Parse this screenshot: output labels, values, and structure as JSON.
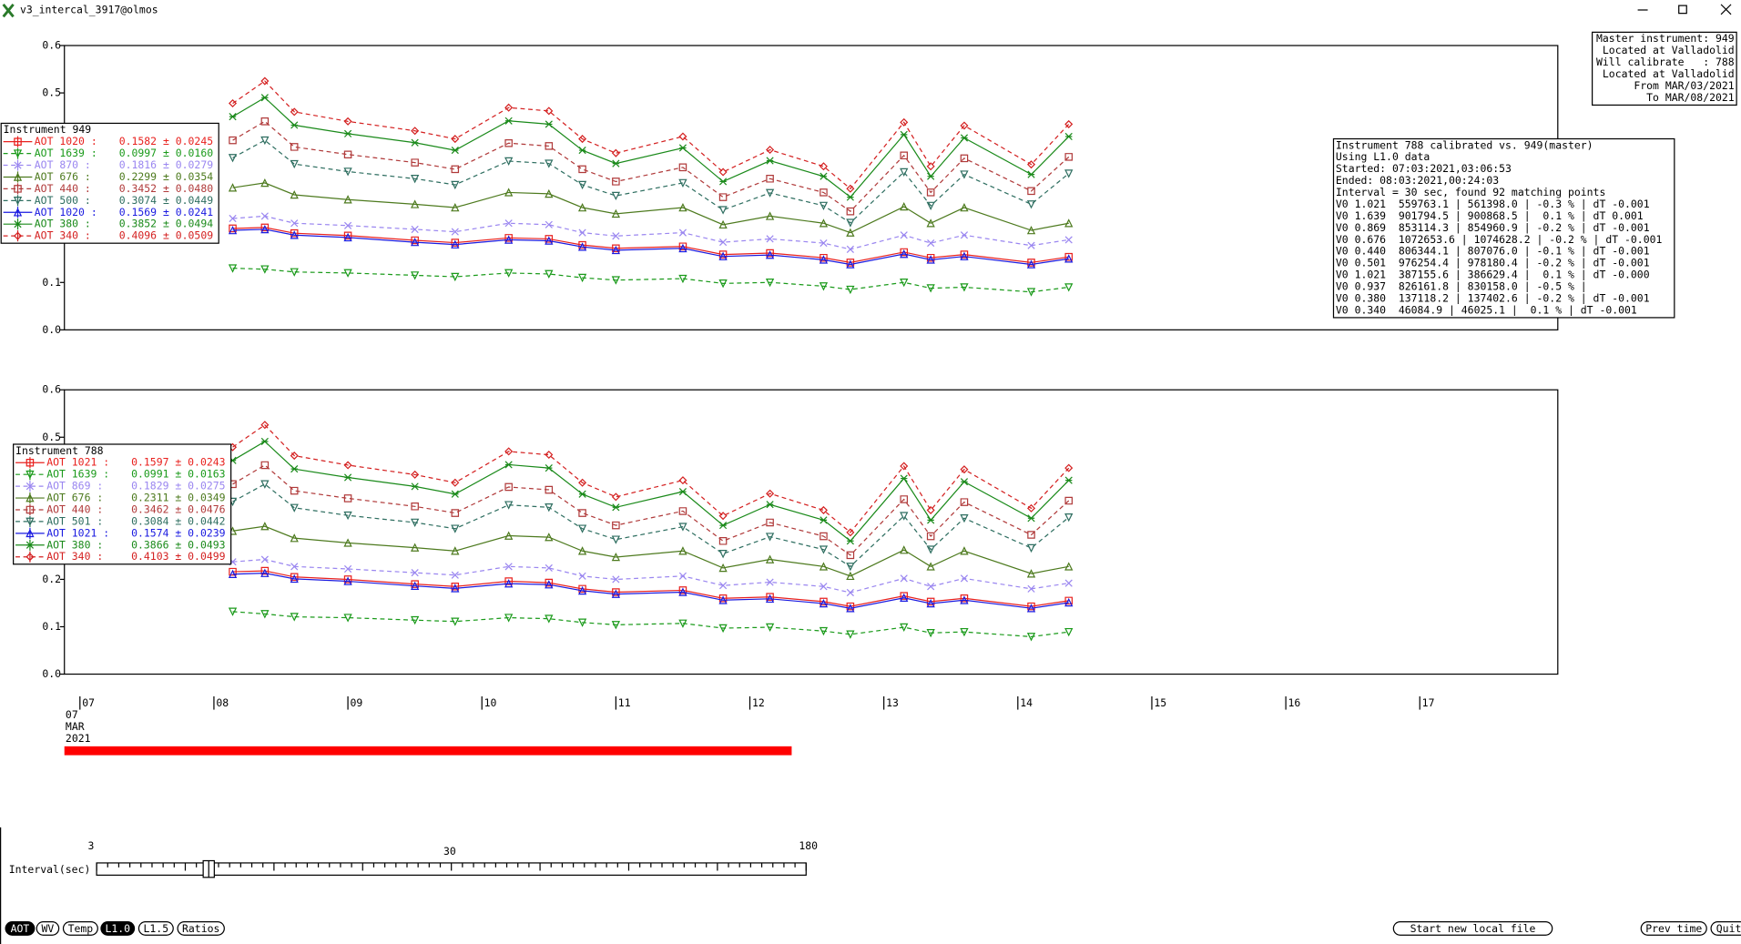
{
  "window": {
    "title": "v3_intercal_3917@olmos"
  },
  "chart_data": [
    {
      "type": "line",
      "legend_title": "Instrument 949",
      "x": [
        8.14,
        8.38,
        8.6,
        9.0,
        9.5,
        9.8,
        10.2,
        10.5,
        10.75,
        11.0,
        11.5,
        11.8,
        12.15,
        12.55,
        12.75,
        13.15,
        13.35,
        13.6,
        14.1,
        14.38
      ],
      "xlim": [
        6.884,
        18.03
      ],
      "ylim": [
        0,
        0.6
      ],
      "yticks": [
        {
          "value": 0,
          "label": "0.0"
        },
        0.1,
        0.2,
        0.3,
        0.4,
        0.5,
        0.6
      ],
      "series": [
        {
          "name": "AOT 1020 :",
          "summary": "0.1582 ± 0.0245",
          "color": "#e8211e",
          "marker": "square",
          "dashed": false,
          "values": [
            0.214,
            0.216,
            0.204,
            0.199,
            0.189,
            0.184,
            0.194,
            0.192,
            0.179,
            0.172,
            0.176,
            0.159,
            0.162,
            0.152,
            0.142,
            0.164,
            0.152,
            0.159,
            0.142,
            0.154
          ]
        },
        {
          "name": "AOT 1639 :",
          "summary": "0.0997 ± 0.0160",
          "color": "#1a9a1a",
          "marker": "tri-down",
          "dashed": true,
          "values": [
            0.13,
            0.128,
            0.122,
            0.12,
            0.115,
            0.112,
            0.12,
            0.118,
            0.11,
            0.105,
            0.108,
            0.098,
            0.1,
            0.092,
            0.085,
            0.1,
            0.088,
            0.09,
            0.08,
            0.09
          ]
        },
        {
          "name": "AOT 870 :",
          "summary": "0.1816 ± 0.0279",
          "color": "#9a86f0",
          "marker": "cross",
          "dashed": true,
          "values": [
            0.235,
            0.24,
            0.225,
            0.22,
            0.212,
            0.207,
            0.225,
            0.222,
            0.205,
            0.198,
            0.205,
            0.185,
            0.192,
            0.183,
            0.17,
            0.2,
            0.183,
            0.2,
            0.178,
            0.19
          ]
        },
        {
          "name": "AOT 676 :",
          "summary": "0.2299 ± 0.0354",
          "color": "#4d7a1e",
          "marker": "tri-up",
          "dashed": false,
          "values": [
            0.3,
            0.31,
            0.285,
            0.275,
            0.265,
            0.258,
            0.29,
            0.287,
            0.258,
            0.245,
            0.258,
            0.222,
            0.24,
            0.225,
            0.205,
            0.26,
            0.225,
            0.258,
            0.21,
            0.225
          ]
        },
        {
          "name": "AOT 440 :",
          "summary": "0.3452 ± 0.0480",
          "color": "#b03a3a",
          "marker": "square",
          "dashed": true,
          "values": [
            0.4,
            0.44,
            0.386,
            0.37,
            0.353,
            0.339,
            0.394,
            0.388,
            0.339,
            0.313,
            0.343,
            0.28,
            0.319,
            0.29,
            0.25,
            0.368,
            0.29,
            0.362,
            0.293,
            0.365
          ]
        },
        {
          "name": "AOT 500 :",
          "summary": "0.3074 ± 0.0449",
          "color": "#2e6e60",
          "marker": "tri-down",
          "dashed": true,
          "values": [
            0.363,
            0.4,
            0.35,
            0.334,
            0.319,
            0.306,
            0.356,
            0.351,
            0.306,
            0.283,
            0.31,
            0.253,
            0.289,
            0.262,
            0.226,
            0.333,
            0.262,
            0.328,
            0.265,
            0.33
          ]
        },
        {
          "name": "AOT 1020 :",
          "summary": "0.1569 ± 0.0241",
          "color": "#1a1ae0",
          "marker": "tri-up",
          "dashed": false,
          "values": [
            0.21,
            0.212,
            0.2,
            0.195,
            0.185,
            0.18,
            0.19,
            0.188,
            0.175,
            0.168,
            0.172,
            0.155,
            0.158,
            0.148,
            0.138,
            0.16,
            0.148,
            0.155,
            0.138,
            0.15
          ]
        },
        {
          "name": "AOT 380 :",
          "summary": "0.3852 ± 0.0494",
          "color": "#1a8a1a",
          "marker": "asterisk",
          "dashed": false,
          "values": [
            0.45,
            0.49,
            0.432,
            0.414,
            0.395,
            0.379,
            0.441,
            0.434,
            0.379,
            0.351,
            0.384,
            0.313,
            0.357,
            0.324,
            0.28,
            0.412,
            0.324,
            0.405,
            0.328,
            0.408
          ]
        },
        {
          "name": "AOT 340 :",
          "summary": "0.4096 ± 0.0509",
          "color": "#d42020",
          "marker": "diamond",
          "dashed": true,
          "values": [
            0.478,
            0.525,
            0.46,
            0.44,
            0.42,
            0.403,
            0.469,
            0.462,
            0.403,
            0.373,
            0.408,
            0.333,
            0.38,
            0.345,
            0.298,
            0.438,
            0.345,
            0.431,
            0.349,
            0.434
          ]
        }
      ]
    },
    {
      "type": "line",
      "legend_title": "Instrument 788",
      "x": [
        8.14,
        8.38,
        8.6,
        9.0,
        9.5,
        9.8,
        10.2,
        10.5,
        10.75,
        11.0,
        11.5,
        11.8,
        12.15,
        12.55,
        12.75,
        13.15,
        13.35,
        13.6,
        14.1,
        14.38
      ],
      "xlim": [
        6.884,
        18.03
      ],
      "ylim": [
        0,
        0.6
      ],
      "yticks": [
        {
          "value": 0,
          "label": "0.0"
        },
        0.1,
        0.2,
        0.3,
        0.4,
        0.5,
        0.6
      ],
      "xticks": [
        {
          "value": 7,
          "label": "07"
        },
        {
          "value": 8,
          "label": "08"
        },
        {
          "value": 9,
          "label": "09"
        },
        10,
        11,
        12,
        13,
        14,
        15,
        16,
        17
      ],
      "date_lines": [
        "07",
        "MAR",
        "2021"
      ],
      "series": [
        {
          "name": "AOT 1021 :",
          "summary": "0.1597 ± 0.0243",
          "color": "#e8211e",
          "marker": "square",
          "dashed": false,
          "values": [
            0.216,
            0.218,
            0.205,
            0.2,
            0.19,
            0.185,
            0.196,
            0.193,
            0.18,
            0.173,
            0.177,
            0.16,
            0.163,
            0.153,
            0.143,
            0.165,
            0.153,
            0.16,
            0.143,
            0.155
          ]
        },
        {
          "name": "AOT 1639 :",
          "summary": "0.0991 ± 0.0163",
          "color": "#1a9a1a",
          "marker": "tri-down",
          "dashed": true,
          "values": [
            0.132,
            0.127,
            0.121,
            0.119,
            0.114,
            0.111,
            0.119,
            0.117,
            0.109,
            0.104,
            0.107,
            0.097,
            0.099,
            0.091,
            0.084,
            0.099,
            0.087,
            0.089,
            0.079,
            0.089
          ]
        },
        {
          "name": "AOT 869 :",
          "summary": "0.1829 ± 0.0275",
          "color": "#9a86f0",
          "marker": "cross",
          "dashed": true,
          "values": [
            0.237,
            0.242,
            0.227,
            0.222,
            0.214,
            0.209,
            0.227,
            0.224,
            0.207,
            0.2,
            0.207,
            0.187,
            0.194,
            0.185,
            0.172,
            0.202,
            0.185,
            0.202,
            0.18,
            0.192
          ]
        },
        {
          "name": "AOT 676 :",
          "summary": "0.2311 ± 0.0349",
          "color": "#4d7a1e",
          "marker": "tri-up",
          "dashed": false,
          "values": [
            0.302,
            0.312,
            0.287,
            0.277,
            0.267,
            0.26,
            0.292,
            0.289,
            0.26,
            0.247,
            0.26,
            0.224,
            0.242,
            0.227,
            0.207,
            0.262,
            0.227,
            0.26,
            0.212,
            0.227
          ]
        },
        {
          "name": "AOT 440 :",
          "summary": "0.3462 ± 0.0476",
          "color": "#b03a3a",
          "marker": "square",
          "dashed": true,
          "values": [
            0.401,
            0.441,
            0.387,
            0.371,
            0.354,
            0.34,
            0.395,
            0.389,
            0.34,
            0.314,
            0.344,
            0.281,
            0.32,
            0.291,
            0.251,
            0.369,
            0.291,
            0.363,
            0.294,
            0.366
          ]
        },
        {
          "name": "AOT 501 :",
          "summary": "0.3084 ± 0.0442",
          "color": "#2e6e60",
          "marker": "tri-down",
          "dashed": true,
          "values": [
            0.364,
            0.401,
            0.351,
            0.335,
            0.32,
            0.307,
            0.357,
            0.352,
            0.307,
            0.284,
            0.311,
            0.254,
            0.29,
            0.263,
            0.227,
            0.334,
            0.263,
            0.329,
            0.266,
            0.331
          ]
        },
        {
          "name": "AOT 1021 :",
          "summary": "0.1574 ± 0.0239",
          "color": "#1a1ae0",
          "marker": "tri-up",
          "dashed": false,
          "values": [
            0.211,
            0.213,
            0.201,
            0.196,
            0.186,
            0.181,
            0.191,
            0.189,
            0.176,
            0.169,
            0.173,
            0.156,
            0.159,
            0.149,
            0.139,
            0.161,
            0.149,
            0.156,
            0.139,
            0.151
          ]
        },
        {
          "name": "AOT 380 :",
          "summary": "0.3866 ± 0.0493",
          "color": "#1a8a1a",
          "marker": "asterisk",
          "dashed": false,
          "values": [
            0.451,
            0.491,
            0.433,
            0.415,
            0.396,
            0.38,
            0.442,
            0.435,
            0.38,
            0.352,
            0.385,
            0.314,
            0.358,
            0.325,
            0.281,
            0.413,
            0.325,
            0.406,
            0.329,
            0.409
          ]
        },
        {
          "name": "AOT 340 :",
          "summary": "0.4103 ± 0.0499",
          "color": "#d42020",
          "marker": "diamond",
          "dashed": true,
          "values": [
            0.479,
            0.526,
            0.461,
            0.441,
            0.421,
            0.404,
            0.47,
            0.463,
            0.404,
            0.374,
            0.409,
            0.334,
            0.381,
            0.346,
            0.299,
            0.439,
            0.346,
            0.432,
            0.35,
            0.435
          ]
        }
      ]
    }
  ],
  "master_box": [
    "Master instrument: 949",
    "Located at Valladolid",
    "Will calibrate   : 788",
    "Located at Valladolid",
    "From MAR/03/2021",
    "To MAR/08/2021"
  ],
  "calibration_box": [
    "Instrument 788 calibrated vs. 949(master)",
    "Using L1.0 data",
    "Started: 07:03:2021,03:06:53",
    "Ended: 08:03:2021,00:24:03",
    "Interval = 30 sec, found 92 matching points",
    "V0 1.021  559763.1 | 561398.0 | -0.3 % | dT -0.001",
    "V0 1.639  901794.5 | 900868.5 |  0.1 % | dT 0.001",
    "V0 0.869  853114.3 | 854960.9 | -0.2 % | dT -0.001",
    "V0 0.676  1072653.6 | 1074628.2 | -0.2 % | dT -0.001",
    "V0 0.440  806344.1 | 807076.0 | -0.1 % | dT -0.001",
    "V0 0.501  976254.4 | 978180.4 | -0.2 % | dT -0.001",
    "V0 1.021  387155.6 | 386629.4 |  0.1 % | dT -0.000",
    "V0 0.937  826161.8 | 830158.0 | -0.5 % |",
    "V0 0.380  137118.2 | 137402.6 | -0.2 % | dT -0.001",
    "V0 0.340  46084.9 | 46025.1 |  0.1 % | dT -0.001"
  ],
  "slider": {
    "label": "Interval(sec)",
    "min_label": "3",
    "mid_label": "30",
    "max_label": "180"
  },
  "mode_buttons": [
    "AOT",
    "WV",
    "Temp",
    "L1.0",
    "L1.5",
    "Ratios"
  ],
  "action_buttons": [
    "Start new local file",
    "Prev time",
    "Quit"
  ]
}
